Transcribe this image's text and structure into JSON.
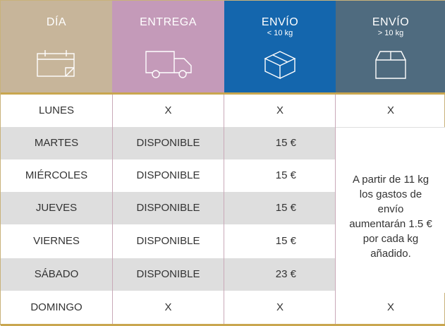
{
  "headers": [
    {
      "title": "DÍA",
      "subtitle": "",
      "icon": "calendar-icon",
      "color": "#c7b59a"
    },
    {
      "title": "ENTREGA",
      "subtitle": "",
      "icon": "truck-icon",
      "color": "#c49ab9"
    },
    {
      "title": "ENVÍO",
      "subtitle": "< 10 kg",
      "icon": "package-closed-icon",
      "color": "#1466ad"
    },
    {
      "title": "ENVÍO",
      "subtitle": "> 10 kg",
      "icon": "box-open-icon",
      "color": "#4f6b7f"
    }
  ],
  "rows": [
    {
      "day": "LUNES",
      "delivery": "X",
      "under10": "X",
      "over10": "X"
    },
    {
      "day": "MARTES",
      "delivery": "DISPONIBLE",
      "under10": "15 €"
    },
    {
      "day": "MIÉRCOLES",
      "delivery": "DISPONIBLE",
      "under10": "15 €"
    },
    {
      "day": "JUEVES",
      "delivery": "DISPONIBLE",
      "under10": "15 €"
    },
    {
      "day": "VIERNES",
      "delivery": "DISPONIBLE",
      "under10": "15 €"
    },
    {
      "day": "SÁBADO",
      "delivery": "DISPONIBLE",
      "under10": "23 €"
    },
    {
      "day": "DOMINGO",
      "delivery": "X",
      "under10": "X",
      "over10": "X"
    }
  ],
  "note": "A partir de 11 kg los gastos de envío aumentarán 1.5 € por cada kg añadido.",
  "colors": {
    "accent_gold": "#c9a64f",
    "row_grey": "#dedede"
  }
}
